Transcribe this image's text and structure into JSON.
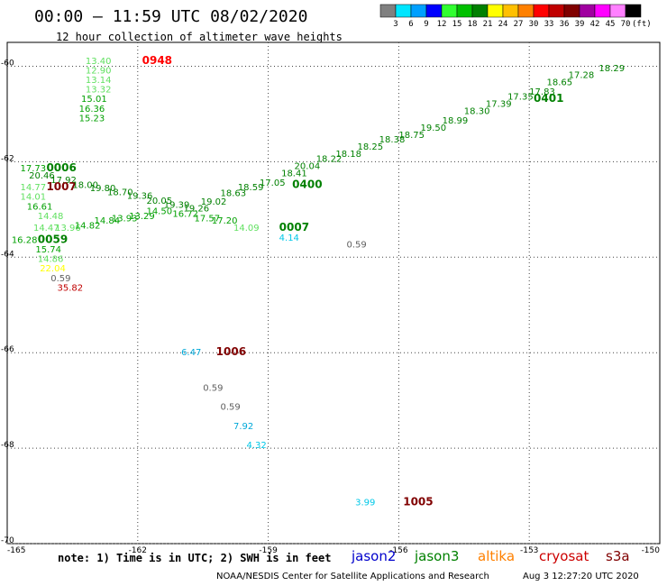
{
  "header": {
    "title": "00:00 – 11:59 UTC 08/02/2020",
    "subtitle": "12 hour collection of altimeter wave heights"
  },
  "color_scale": {
    "labels": [
      "3",
      "6",
      "9",
      "12",
      "15",
      "18",
      "21",
      "24",
      "27",
      "30",
      "33",
      "36",
      "39",
      "42",
      "45",
      "70",
      "(ft)"
    ],
    "colors": [
      "#808080",
      "#00e6ff",
      "#00a0ff",
      "#0000ff",
      "#30ff30",
      "#00c000",
      "#008000",
      "#ffff00",
      "#ffc000",
      "#ff8000",
      "#ff0000",
      "#c00000",
      "#800000",
      "#a000a0",
      "#ff00ff",
      "#ff80ff",
      "#000000"
    ]
  },
  "footer": {
    "note": "note:  1) Time is in UTC;  2) SWH is in feet",
    "credit": "NOAA/NESDIS Center for Satellite Applications and Research",
    "timestamp": "Aug  3 12:27:20 UTC 2020",
    "satellites": [
      {
        "name": "jason2",
        "color": "#0000cc"
      },
      {
        "name": "jason3",
        "color": "#008000"
      },
      {
        "name": "altika",
        "color": "#ff8000"
      },
      {
        "name": "cryosat",
        "color": "#cc0000"
      },
      {
        "name": "s3a",
        "color": "#800000"
      }
    ]
  },
  "chart_data": {
    "type": "scatter",
    "title": "00:00 – 11:59 UTC 08/02/2020",
    "subtitle": "12 hour collection of altimeter wave heights",
    "xlim": [
      -165,
      -150
    ],
    "ylim": [
      -70,
      -59.5
    ],
    "x_ticks": [
      "-165",
      "-162",
      "-159",
      "-156",
      "-153",
      "-150"
    ],
    "y_ticks": [
      "-60",
      "-62",
      "-64",
      "-66",
      "-68",
      "-70"
    ],
    "grid": true,
    "points": [
      {
        "x": -161.9,
        "y": -59.95,
        "label": "0948",
        "color": "#ff0000",
        "bold": true
      },
      {
        "x": -163.2,
        "y": -59.95,
        "label": "13.40",
        "color": "#60e060"
      },
      {
        "x": -163.2,
        "y": -60.15,
        "label": "12.90",
        "color": "#60e060"
      },
      {
        "x": -163.2,
        "y": -60.35,
        "label": "13.14",
        "color": "#60e060"
      },
      {
        "x": -163.2,
        "y": -60.55,
        "label": "13.32",
        "color": "#60e060"
      },
      {
        "x": -163.3,
        "y": -60.75,
        "label": "15.01",
        "color": "#00a000"
      },
      {
        "x": -163.35,
        "y": -60.95,
        "label": "16.36",
        "color": "#00a000"
      },
      {
        "x": -163.35,
        "y": -61.15,
        "label": "15.23",
        "color": "#00a000"
      },
      {
        "x": -164.7,
        "y": -62.2,
        "label": "17.73",
        "color": "#00a000"
      },
      {
        "x": -164.1,
        "y": -62.2,
        "label": "0006",
        "color": "#008000",
        "bold": true
      },
      {
        "x": -164.5,
        "y": -62.35,
        "label": "20.46",
        "color": "#008000"
      },
      {
        "x": -164.0,
        "y": -62.45,
        "label": "17.92",
        "color": "#008000"
      },
      {
        "x": -164.7,
        "y": -62.6,
        "label": "14.77",
        "color": "#60e060"
      },
      {
        "x": -164.1,
        "y": -62.6,
        "label": "1007",
        "color": "#800000",
        "bold": true
      },
      {
        "x": -163.5,
        "y": -62.55,
        "label": "18.00",
        "color": "#008000"
      },
      {
        "x": -163.1,
        "y": -62.62,
        "label": "19.80",
        "color": "#008000"
      },
      {
        "x": -162.7,
        "y": -62.7,
        "label": "18.70",
        "color": "#008000"
      },
      {
        "x": -162.25,
        "y": -62.78,
        "label": "19.36",
        "color": "#008000"
      },
      {
        "x": -164.7,
        "y": -62.8,
        "label": "14.01",
        "color": "#60e060"
      },
      {
        "x": -164.55,
        "y": -63.0,
        "label": "16.61",
        "color": "#00a000"
      },
      {
        "x": -161.8,
        "y": -62.88,
        "label": "20.05",
        "color": "#008000"
      },
      {
        "x": -161.4,
        "y": -62.97,
        "label": "19.39",
        "color": "#008000"
      },
      {
        "x": -160.95,
        "y": -63.04,
        "label": "19.26",
        "color": "#008000"
      },
      {
        "x": -160.55,
        "y": -62.9,
        "label": "19.02",
        "color": "#008000"
      },
      {
        "x": -160.1,
        "y": -62.72,
        "label": "18.63",
        "color": "#008000"
      },
      {
        "x": -159.7,
        "y": -62.6,
        "label": "18.59",
        "color": "#008000"
      },
      {
        "x": -159.2,
        "y": -62.5,
        "label": "17.05",
        "color": "#008000"
      },
      {
        "x": -158.7,
        "y": -62.3,
        "label": "18.41",
        "color": "#008000"
      },
      {
        "x": -158.45,
        "y": -62.55,
        "label": "0400",
        "color": "#008000",
        "bold": true
      },
      {
        "x": -158.4,
        "y": -62.15,
        "label": "20.04",
        "color": "#008000"
      },
      {
        "x": -157.9,
        "y": -62.0,
        "label": "18.22",
        "color": "#008000"
      },
      {
        "x": -157.45,
        "y": -61.9,
        "label": "18.18",
        "color": "#008000"
      },
      {
        "x": -156.95,
        "y": -61.75,
        "label": "18.25",
        "color": "#008000"
      },
      {
        "x": -156.45,
        "y": -61.6,
        "label": "18.38",
        "color": "#008000"
      },
      {
        "x": -156.0,
        "y": -61.5,
        "label": "18.75",
        "color": "#008000"
      },
      {
        "x": -155.5,
        "y": -61.35,
        "label": "19.50",
        "color": "#008000"
      },
      {
        "x": -155.0,
        "y": -61.2,
        "label": "18.99",
        "color": "#008000"
      },
      {
        "x": -154.5,
        "y": -61.0,
        "label": "18.30",
        "color": "#008000"
      },
      {
        "x": -154.0,
        "y": -60.85,
        "label": "17.39",
        "color": "#008000"
      },
      {
        "x": -153.5,
        "y": -60.7,
        "label": "17.35",
        "color": "#008000"
      },
      {
        "x": -153.0,
        "y": -60.6,
        "label": "17.83",
        "color": "#008000"
      },
      {
        "x": -152.9,
        "y": -60.75,
        "label": "0401",
        "color": "#008000",
        "bold": true
      },
      {
        "x": -152.6,
        "y": -60.4,
        "label": "18.65",
        "color": "#008000"
      },
      {
        "x": -152.1,
        "y": -60.25,
        "label": "17.28",
        "color": "#008000"
      },
      {
        "x": -151.4,
        "y": -60.1,
        "label": "18.29",
        "color": "#008000"
      },
      {
        "x": -164.3,
        "y": -63.2,
        "label": "14.48",
        "color": "#60e060"
      },
      {
        "x": -164.4,
        "y": -63.45,
        "label": "14.47",
        "color": "#60e060"
      },
      {
        "x": -163.9,
        "y": -63.45,
        "label": "13.96",
        "color": "#60e060"
      },
      {
        "x": -163.45,
        "y": -63.4,
        "label": "14.82",
        "color": "#00a000"
      },
      {
        "x": -163.0,
        "y": -63.3,
        "label": "14.84",
        "color": "#00a000"
      },
      {
        "x": -162.6,
        "y": -63.25,
        "label": "13.93",
        "color": "#00a000"
      },
      {
        "x": -162.2,
        "y": -63.2,
        "label": "13.29",
        "color": "#00a000"
      },
      {
        "x": -161.8,
        "y": -63.1,
        "label": "14.50",
        "color": "#00a000"
      },
      {
        "x": -161.2,
        "y": -63.15,
        "label": "16.72",
        "color": "#00a000"
      },
      {
        "x": -160.7,
        "y": -63.25,
        "label": "17.57",
        "color": "#00a000"
      },
      {
        "x": -160.3,
        "y": -63.3,
        "label": "17.20",
        "color": "#00a000"
      },
      {
        "x": -164.9,
        "y": -63.7,
        "label": "16.28",
        "color": "#00a000"
      },
      {
        "x": -164.3,
        "y": -63.7,
        "label": "0059",
        "color": "#008000",
        "bold": true
      },
      {
        "x": -164.35,
        "y": -63.9,
        "label": "15.74",
        "color": "#00a000"
      },
      {
        "x": -164.3,
        "y": -64.1,
        "label": "14.86",
        "color": "#60e060"
      },
      {
        "x": -164.25,
        "y": -64.3,
        "label": "22.04",
        "color": "#ffff00"
      },
      {
        "x": -164.0,
        "y": -64.5,
        "label": "0.59",
        "color": "#606060"
      },
      {
        "x": -163.85,
        "y": -64.7,
        "label": "35.82",
        "color": "#c00000"
      },
      {
        "x": -159.8,
        "y": -63.45,
        "label": "14.09",
        "color": "#60e060"
      },
      {
        "x": -158.75,
        "y": -63.45,
        "label": "0007",
        "color": "#008000",
        "bold": true
      },
      {
        "x": -158.75,
        "y": -63.65,
        "label": "4.14",
        "color": "#00c8e8"
      },
      {
        "x": -157.2,
        "y": -63.8,
        "label": "0.59",
        "color": "#606060"
      },
      {
        "x": -161.0,
        "y": -66.05,
        "label": "6.47",
        "color": "#00a8d8"
      },
      {
        "x": -160.2,
        "y": -66.05,
        "label": "1006",
        "color": "#800000",
        "bold": true
      },
      {
        "x": -160.5,
        "y": -66.8,
        "label": "0.59",
        "color": "#606060"
      },
      {
        "x": -160.1,
        "y": -67.2,
        "label": "0.59",
        "color": "#606060"
      },
      {
        "x": -159.8,
        "y": -67.6,
        "label": "7.92",
        "color": "#00a8d8"
      },
      {
        "x": -159.5,
        "y": -68.0,
        "label": "4.32",
        "color": "#00c8e8"
      },
      {
        "x": -157.0,
        "y": -69.2,
        "label": "3.99",
        "color": "#00c8e8"
      },
      {
        "x": -155.9,
        "y": -69.2,
        "label": "1005",
        "color": "#800000",
        "bold": true
      }
    ]
  }
}
